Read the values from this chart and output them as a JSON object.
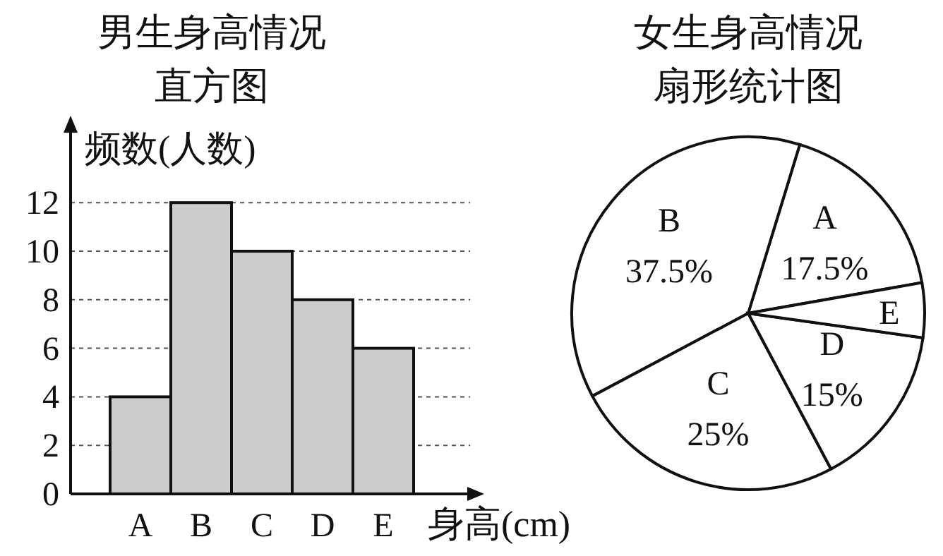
{
  "chart_data": [
    {
      "type": "bar",
      "title": "男生身高情况",
      "subtitle": "直方图",
      "ylabel": "频数(人数)",
      "xlabel": "身高(cm)",
      "categories": [
        "A",
        "B",
        "C",
        "D",
        "E"
      ],
      "values": [
        4,
        12,
        10,
        8,
        6
      ],
      "color": "#cccccc",
      "ylim": [
        0,
        15
      ],
      "yticks": [
        0,
        2,
        4,
        6,
        8,
        10,
        12
      ],
      "grid": "y"
    },
    {
      "type": "pie",
      "title": "女生身高情况",
      "subtitle": "扇形统计图",
      "categories": [
        "A",
        "B",
        "C",
        "D",
        "E"
      ],
      "values": [
        17.5,
        37.5,
        25,
        15,
        5
      ],
      "colors": [
        "#ffffff",
        "#ffffff",
        "#ffffff",
        "#ffffff",
        "#ffffff"
      ],
      "value_labels": [
        "17.5%",
        "37.5%",
        "25%",
        "15%",
        null
      ]
    }
  ]
}
